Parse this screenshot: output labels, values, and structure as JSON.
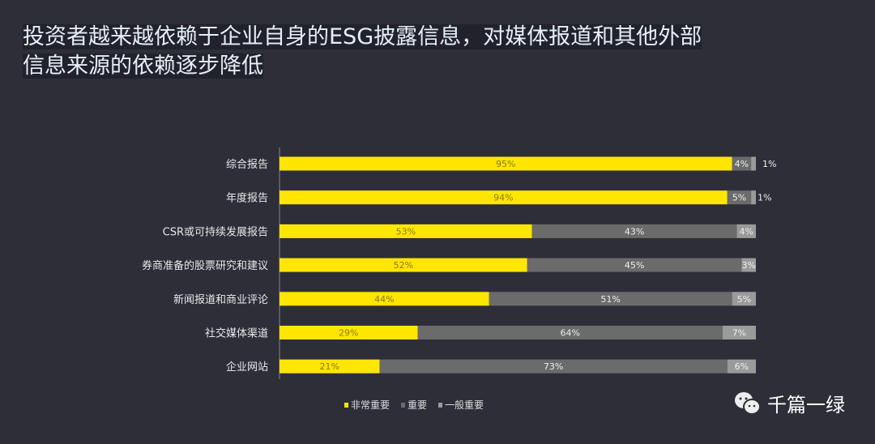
{
  "title_lines": [
    "投资者越来越依赖于企业自身的ESG披露信息，对媒体报道和其他外部",
    "信息来源的依赖逐步降低"
  ],
  "chart_data": {
    "type": "bar",
    "orientation": "horizontal",
    "stacked": true,
    "categories": [
      "综合报告",
      "年度报告",
      "CSR或可持续发展报告",
      "券商准备的股票研究和建议",
      "新闻报道和商业评论",
      "社交媒体渠道",
      "企业网站"
    ],
    "series": [
      {
        "name": "非常重要",
        "color": "#ffe600",
        "values": [
          95,
          94,
          53,
          52,
          44,
          29,
          21
        ]
      },
      {
        "name": "重要",
        "color": "#6b6b6b",
        "values": [
          4,
          5,
          43,
          45,
          51,
          64,
          73
        ]
      },
      {
        "name": "一般重要",
        "color": "#9a9a9a",
        "values": [
          1,
          1,
          4,
          3,
          5,
          7,
          6
        ]
      }
    ],
    "xlim": [
      0,
      100
    ],
    "unit": "%",
    "legend": "bottom",
    "grid": false
  },
  "brand": {
    "name": "千篇一绿",
    "icon": "wechat-icon"
  }
}
